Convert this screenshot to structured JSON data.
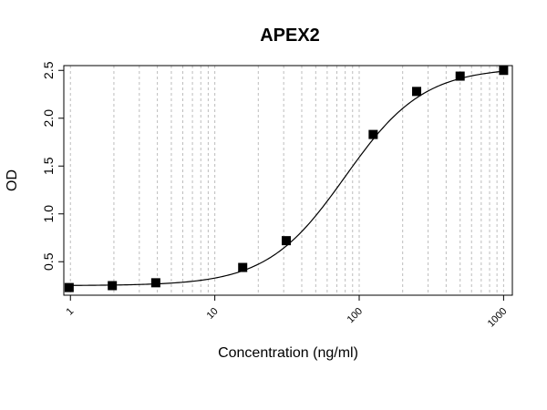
{
  "chart_data": {
    "type": "scatter",
    "title": "APEX2",
    "xlabel": "Concentration (ng/ml)",
    "ylabel": "OD",
    "x_scale": "log",
    "xlim": [
      0.9,
      1150
    ],
    "ylim": [
      0.15,
      2.55
    ],
    "x_ticks": [
      1,
      10,
      100,
      1000
    ],
    "x_tick_labels": [
      "1",
      "10",
      "100",
      "1000"
    ],
    "y_ticks": [
      0.5,
      1.0,
      1.5,
      2.0,
      2.5
    ],
    "y_tick_labels": [
      "0.5",
      "1.0",
      "1.5",
      "2.0",
      "2.5"
    ],
    "grid": true,
    "series": [
      {
        "marker": "square",
        "x": [
          0.98,
          1.95,
          3.9,
          15.6,
          31.25,
          125,
          250,
          500,
          1000
        ],
        "y": [
          0.23,
          0.25,
          0.28,
          0.44,
          0.72,
          1.83,
          2.28,
          2.44,
          2.5
        ]
      }
    ],
    "fit_curve": {
      "model": "4PL",
      "bottom": 0.25,
      "top": 2.53,
      "ec50": 80,
      "hill": 1.6
    }
  }
}
